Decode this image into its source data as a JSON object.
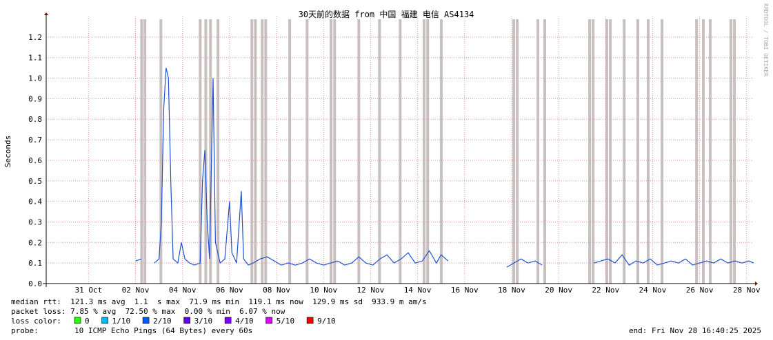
{
  "chart_data": {
    "type": "line",
    "title": "30天前的数据 from 中国 福建 电信 AS4134",
    "ylabel": "Seconds",
    "watermark": "RRDTOOL / TOBI OETIKER",
    "xlim": [
      -1.8,
      28.3
    ],
    "xticks": [
      {
        "value": 0,
        "label": "31 Oct"
      },
      {
        "value": 2,
        "label": "02 Nov"
      },
      {
        "value": 4,
        "label": "04 Nov"
      },
      {
        "value": 6,
        "label": "06 Nov"
      },
      {
        "value": 8,
        "label": "08 Nov"
      },
      {
        "value": 10,
        "label": "10 Nov"
      },
      {
        "value": 12,
        "label": "12 Nov"
      },
      {
        "value": 14,
        "label": "14 Nov"
      },
      {
        "value": 16,
        "label": "16 Nov"
      },
      {
        "value": 18,
        "label": "18 Nov"
      },
      {
        "value": 20,
        "label": "20 Nov"
      },
      {
        "value": 22,
        "label": "22 Nov"
      },
      {
        "value": 24,
        "label": "24 Nov"
      },
      {
        "value": 26,
        "label": "26 Nov"
      },
      {
        "value": 28,
        "label": "28 Nov"
      }
    ],
    "ylim": [
      0,
      1.3
    ],
    "yticks": [
      {
        "value": 0,
        "label": "0.0"
      },
      0.1,
      0.2,
      0.3,
      0.4,
      0.5,
      0.6,
      0.7,
      0.8,
      0.9,
      {
        "value": 1,
        "label": "1.0"
      },
      1.1,
      1.2
    ],
    "grid": true,
    "loss_x": [
      2.26,
      2.4,
      3.08,
      4.75,
      4.99,
      5.19,
      5.51,
      6.95,
      7.1,
      7.39,
      7.54,
      8.56,
      9.3,
      10.32,
      10.47,
      11.5,
      12.38,
      13.26,
      14.28,
      14.43,
      15.01,
      18.09,
      18.24,
      19.12,
      19.41,
      21.32,
      21.47,
      22.05,
      22.2,
      22.79,
      23.37,
      23.81,
      24.4,
      25.87,
      26.16,
      26.45,
      27.33,
      27.48
    ],
    "series": [
      {
        "name": "median rtt",
        "color": "#1f4fd0",
        "x": [
          2.0,
          2.25,
          2.5,
          2.8,
          3.0,
          3.1,
          3.2,
          3.3,
          3.4,
          3.5,
          3.6,
          3.8,
          3.95,
          4.1,
          4.3,
          4.5,
          4.75,
          4.85,
          4.95,
          5.05,
          5.15,
          5.3,
          5.4,
          5.6,
          5.8,
          6.0,
          6.1,
          6.3,
          6.5,
          6.6,
          6.8,
          7.0,
          7.3,
          7.6,
          7.9,
          8.2,
          8.5,
          8.8,
          9.1,
          9.4,
          9.7,
          10.0,
          10.3,
          10.6,
          10.9,
          11.2,
          11.5,
          11.8,
          12.1,
          12.4,
          12.7,
          13.0,
          13.3,
          13.6,
          13.9,
          14.2,
          14.5,
          14.8,
          15.0,
          15.3,
          16.5,
          17.8,
          18.1,
          18.4,
          18.7,
          19.0,
          19.3,
          20.5,
          21.5,
          21.8,
          22.1,
          22.4,
          22.7,
          23.0,
          23.3,
          23.6,
          23.9,
          24.2,
          24.5,
          24.8,
          25.1,
          25.4,
          25.7,
          26.0,
          26.3,
          26.6,
          26.9,
          27.2,
          27.5,
          27.8,
          28.1,
          28.3
        ],
        "values": [
          0.11,
          0.12,
          null,
          0.1,
          0.12,
          0.3,
          0.85,
          1.05,
          1.0,
          0.5,
          0.12,
          0.1,
          0.2,
          0.12,
          0.1,
          0.09,
          0.1,
          0.5,
          0.65,
          0.3,
          0.12,
          1.0,
          0.2,
          0.1,
          0.12,
          0.4,
          0.15,
          0.1,
          0.45,
          0.12,
          0.09,
          0.1,
          0.12,
          0.13,
          0.11,
          0.09,
          0.1,
          0.09,
          0.1,
          0.12,
          0.1,
          0.09,
          0.1,
          0.11,
          0.09,
          0.1,
          0.13,
          0.1,
          0.09,
          0.12,
          0.14,
          0.1,
          0.12,
          0.15,
          0.1,
          0.11,
          0.16,
          0.1,
          0.14,
          0.11,
          null,
          0.08,
          0.1,
          0.12,
          0.1,
          0.11,
          0.09,
          null,
          0.1,
          0.11,
          0.12,
          0.1,
          0.14,
          0.09,
          0.11,
          0.1,
          0.12,
          0.09,
          0.1,
          0.11,
          0.1,
          0.12,
          0.09,
          0.1,
          0.11,
          0.1,
          0.12,
          0.1,
          0.11,
          0.1,
          0.11,
          0.1
        ]
      }
    ],
    "stats": [
      "median rtt:  121.3 ms avg  1.1  s max  71.9 ms min  119.1 ms now  129.9 ms sd  933.9 m am/s",
      "packet loss: 7.85 % avg  72.50 % max  0.00 % min  6.07 % now"
    ],
    "loss_legend_label": "loss color:",
    "loss_legend": [
      {
        "name": "0",
        "color": "#26ff00"
      },
      {
        "name": "1/10",
        "color": "#00b8ff"
      },
      {
        "name": "2/10",
        "color": "#0059ff"
      },
      {
        "name": "3/10",
        "color": "#5e00ff"
      },
      {
        "name": "4/10",
        "color": "#7e00ff"
      },
      {
        "name": "5/10",
        "color": "#dd00ff"
      },
      {
        "name": "9/10",
        "color": "#ff0000"
      }
    ],
    "probe_label": "probe:",
    "probe": "10 ICMP Echo Pings (64 Bytes) every 60s",
    "end": "end: Fri Nov 28 16:40:25 2025"
  }
}
